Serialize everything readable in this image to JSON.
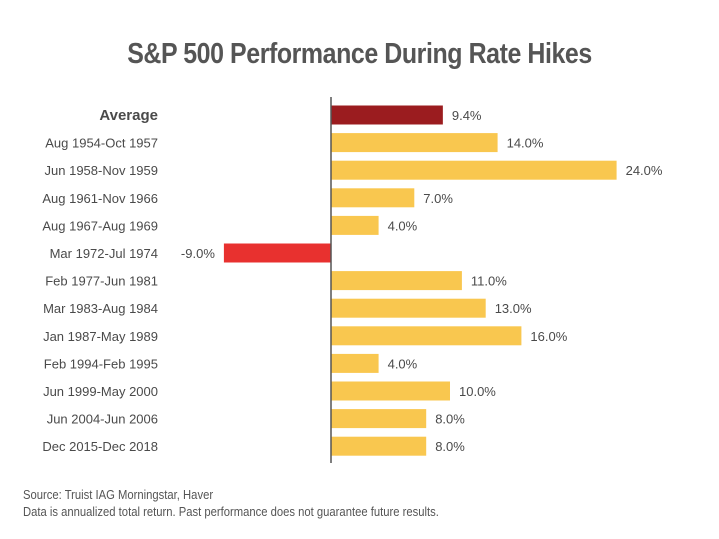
{
  "title": "S&P 500 Performance During Rate Hikes",
  "footer": {
    "source": "Source: Truist IAG Morningstar, Haver",
    "note": "Data is annualized total return. Past performance does not guarantee future results."
  },
  "colors": {
    "average": "#9b1c1f",
    "positive": "#f9c74f",
    "negative": "#e8312f",
    "axis": "#555555",
    "text": "#4a4a4a"
  },
  "chart_data": {
    "type": "bar",
    "orientation": "horizontal",
    "title": "S&P 500 Performance During Rate Hikes",
    "categories": [
      "Average",
      "Aug 1954-Oct 1957",
      "Jun 1958-Nov 1959",
      "Aug 1961-Nov 1966",
      "Aug 1967-Aug 1969",
      "Mar 1972-Jul 1974",
      "Feb 1977-Jun 1981",
      "Mar 1983-Aug 1984",
      "Jan 1987-May 1989",
      "Feb 1994-Feb 1995",
      "Jun 1999-May 2000",
      "Jun 2004-Jun 2006",
      "Dec 2015-Dec 2018"
    ],
    "values": [
      9.4,
      14.0,
      24.0,
      7.0,
      4.0,
      -9.0,
      11.0,
      13.0,
      16.0,
      4.0,
      10.0,
      8.0,
      8.0
    ],
    "labels": [
      "9.4%",
      "14.0%",
      "24.0%",
      "7.0%",
      "4.0%",
      "-9.0%",
      "11.0%",
      "13.0%",
      "16.0%",
      "4.0%",
      "10.0%",
      "8.0%",
      "8.0%"
    ],
    "xlim": [
      -9,
      24
    ],
    "grid": false,
    "legend": "none"
  }
}
